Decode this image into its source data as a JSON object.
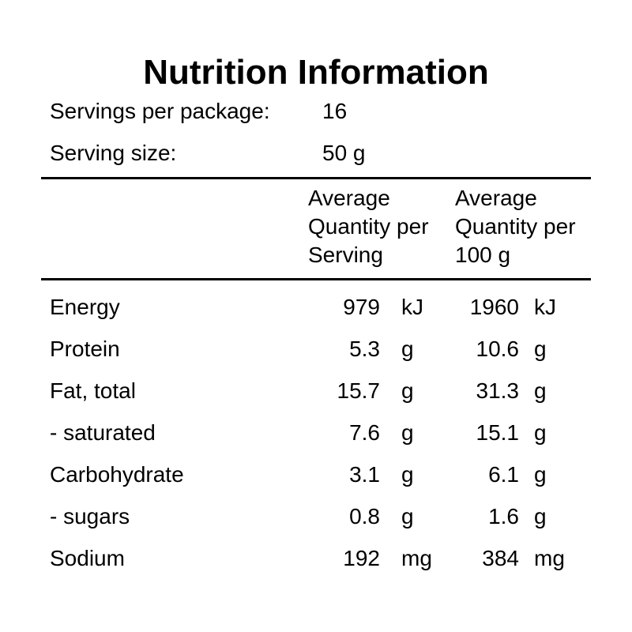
{
  "title": "Nutrition Information",
  "servings": {
    "per_package_label": "Servings per package:",
    "per_package_value": "16",
    "size_label": "Serving size:",
    "size_value": "50 g"
  },
  "columns": {
    "per_serving": [
      "Average",
      "Quantity per",
      "Serving"
    ],
    "per_100g": [
      "Average",
      "Quantity per",
      "100 g"
    ]
  },
  "rows": [
    {
      "name": "Energy",
      "serving_value": "979",
      "serving_unit": "kJ",
      "per100_value": "1960",
      "per100_unit": "kJ"
    },
    {
      "name": "Protein",
      "serving_value": "5.3",
      "serving_unit": "g",
      "per100_value": "10.6",
      "per100_unit": "g"
    },
    {
      "name": "Fat, total",
      "serving_value": "15.7",
      "serving_unit": "g",
      "per100_value": "31.3",
      "per100_unit": "g"
    },
    {
      "name": "- saturated",
      "serving_value": "7.6",
      "serving_unit": "g",
      "per100_value": "15.1",
      "per100_unit": "g"
    },
    {
      "name": "Carbohydrate",
      "serving_value": "3.1",
      "serving_unit": "g",
      "per100_value": "6.1",
      "per100_unit": "g"
    },
    {
      "name": "- sugars",
      "serving_value": "0.8",
      "serving_unit": "g",
      "per100_value": "1.6",
      "per100_unit": "g"
    },
    {
      "name": "Sodium",
      "serving_value": "192",
      "serving_unit": "mg",
      "per100_value": "384",
      "per100_unit": "mg"
    }
  ]
}
